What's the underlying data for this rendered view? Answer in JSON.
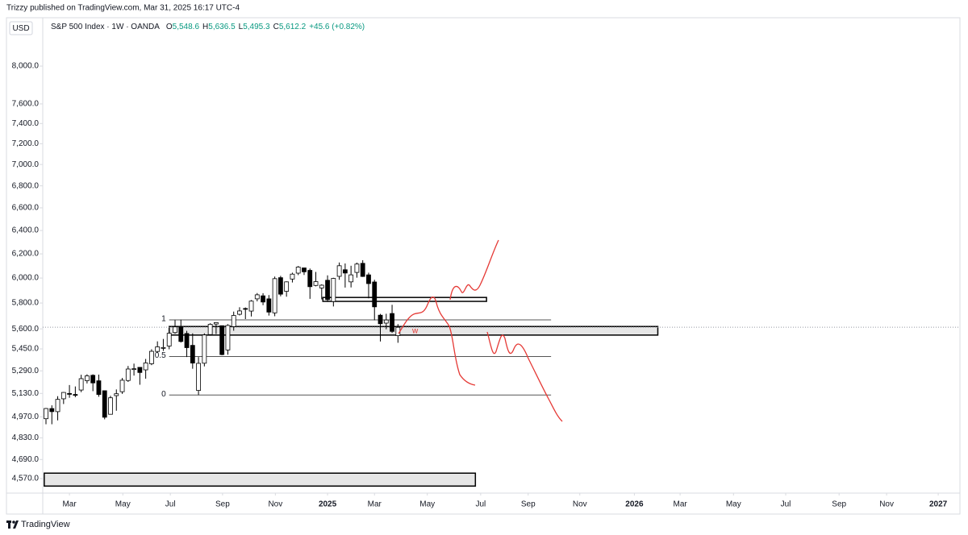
{
  "chart_data": {
    "type": "candlestick",
    "header": "Trizzy published on TradingView.com, Mar 31, 2025 16:17 UTC-4",
    "currency": "USD",
    "legend": {
      "symbol": "S&P 500 Index · 1W · OANDA",
      "fields": [
        {
          "key": "O",
          "value": "5,548.6"
        },
        {
          "key": "H",
          "value": "5,636.5"
        },
        {
          "key": "L",
          "value": "5,495.3"
        },
        {
          "key": "C",
          "value": "5,612.2"
        }
      ],
      "change": "+45.6 (+0.82%)"
    },
    "brand": "TradingView",
    "log_scale": true,
    "up_color": "#ffffff",
    "down_color": "#000000",
    "edge_color": "#000000",
    "open": [
      4957,
      5026,
      5005,
      5093,
      5130,
      5123,
      5154,
      5220,
      5258,
      5219,
      5149,
      4987,
      5115,
      5142,
      5221,
      5305,
      5315,
      5297,
      5341,
      5431,
      5460,
      5471,
      5572,
      5616,
      5565,
      5476,
      5151,
      5345,
      5557,
      5637,
      5624,
      5442,
      5617,
      5712,
      5757,
      5737,
      5833,
      5857,
      5833,
      5723,
      6003,
      5893,
      5992,
      6040,
      6083,
      6063,
      5940,
      5920,
      5982,
      5812,
      6014,
      6068,
      5969,
      6046,
      6121,
      6026,
      5968,
      5705,
      5644,
      5718,
      5548.6
    ],
    "high": [
      5030,
      5048,
      5111,
      5140,
      5189,
      5179,
      5262,
      5265,
      5265,
      5263,
      5151,
      5114,
      5158,
      5239,
      5325,
      5342,
      5315,
      5376,
      5447,
      5506,
      5524,
      5570,
      5667,
      5670,
      5585,
      5566,
      5390,
      5566,
      5643,
      5651,
      5626,
      5636,
      5733,
      5767,
      5765,
      5823,
      5879,
      5878,
      5863,
      6012,
      6018,
      5973,
      6044,
      6099,
      6085,
      6078,
      6050,
      5949,
      6022,
      6002,
      6128,
      6120,
      6101,
      6127,
      6147,
      6044,
      5986,
      5715,
      5716,
      5786,
      5636.5
    ],
    "low": [
      4920,
      4920,
      4946,
      5057,
      5100,
      5104,
      5139,
      5200,
      5146,
      5107,
      4953,
      4985,
      5011,
      5127,
      5211,
      5256,
      5191,
      5234,
      5331,
      5420,
      5435,
      5447,
      5563,
      5497,
      5390,
      5305,
      5119,
      5322,
      5549,
      5561,
      5403,
      5407,
      5586,
      5703,
      5675,
      5695,
      5813,
      5783,
      5702,
      5697,
      5853,
      5850,
      5964,
      6024,
      6025,
      5833,
      5933,
      5829,
      5809,
      5773,
      5986,
      5923,
      5924,
      6003,
      6009,
      5837,
      5666,
      5505,
      5597,
      5570,
      5495.3
    ],
    "close": [
      5026,
      5005,
      5089,
      5137,
      5124,
      5117,
      5234,
      5254,
      5204,
      5123,
      4967,
      5100,
      5128,
      5223,
      5303,
      5305,
      5278,
      5347,
      5432,
      5465,
      5460,
      5567,
      5615,
      5505,
      5459,
      5346,
      5344,
      5554,
      5635,
      5648,
      5408,
      5626,
      5703,
      5738,
      5751,
      5815,
      5865,
      5808,
      5729,
      5995,
      5870,
      5969,
      6032,
      6090,
      6051,
      5930,
      5971,
      5942,
      5827,
      5997,
      6101,
      6041,
      6026,
      6115,
      6013,
      5955,
      5770,
      5639,
      5668,
      5581,
      5612.2
    ],
    "xlim": [
      -0.55,
      155.8
    ],
    "xticks": [
      {
        "value": 4.0,
        "label": "Mar"
      },
      {
        "value": 13.1,
        "label": "May"
      },
      {
        "value": 21.2,
        "label": "Jul"
      },
      {
        "value": 30.1,
        "label": "Sep"
      },
      {
        "value": 39.1,
        "label": "Nov"
      },
      {
        "value": 48.0,
        "label": "2025"
      },
      {
        "value": 56.0,
        "label": "Mar"
      },
      {
        "value": 65.0,
        "label": "May"
      },
      {
        "value": 74.1,
        "label": "Jul"
      },
      {
        "value": 82.2,
        "label": "Sep"
      },
      {
        "value": 91.0,
        "label": "Nov"
      },
      {
        "value": 100.3,
        "label": "2026"
      },
      {
        "value": 108.1,
        "label": "Mar"
      },
      {
        "value": 117.2,
        "label": "May"
      },
      {
        "value": 126.1,
        "label": "Jul"
      },
      {
        "value": 135.2,
        "label": "Sep"
      },
      {
        "value": 143.3,
        "label": "Nov"
      },
      {
        "value": 152.1,
        "label": "2027"
      }
    ],
    "ylim": [
      4481,
      8543
    ],
    "yticks": [
      {
        "value": 8000,
        "label": "8,000.0"
      },
      {
        "value": 7600,
        "label": "7,600.0"
      },
      {
        "value": 7400,
        "label": "7,400.0"
      },
      {
        "value": 7200,
        "label": "7,200.0"
      },
      {
        "value": 7000,
        "label": "7,000.0"
      },
      {
        "value": 6800,
        "label": "6,800.0"
      },
      {
        "value": 6600,
        "label": "6,600.0"
      },
      {
        "value": 6400,
        "label": "6,400.0"
      },
      {
        "value": 6200,
        "label": "6,200.0"
      },
      {
        "value": 6000,
        "label": "6,000.0"
      },
      {
        "value": 5800,
        "label": "5,800.0"
      },
      {
        "value": 5600,
        "label": "5,600.0"
      },
      {
        "value": 5450,
        "label": "5,450.0"
      },
      {
        "value": 5290,
        "label": "5,290.0"
      },
      {
        "value": 5130,
        "label": "5,130.0"
      },
      {
        "value": 4970,
        "label": "4,970.0"
      },
      {
        "value": 4830,
        "label": "4,830.0"
      },
      {
        "value": 4690,
        "label": "4,690.0"
      },
      {
        "value": 4570,
        "label": "4,570.0"
      }
    ],
    "zones": [
      {
        "from": 21.0,
        "to": 104.3,
        "low": 5553,
        "high": 5618,
        "fill": "#e6e6e6"
      },
      {
        "from": 47.2,
        "to": 75.1,
        "low": 5813,
        "high": 5844,
        "fill": "#ffffff"
      },
      {
        "from": -0.3,
        "to": 73.2,
        "low": 4524,
        "high": 4604,
        "fill": "#e6e6e6"
      }
    ],
    "fib": {
      "from": 21.0,
      "to": 86.1,
      "levels": [
        {
          "ratio": 1,
          "price": 5669
        },
        {
          "ratio": 0.5,
          "price": 5394
        },
        {
          "ratio": 0,
          "price": 5119
        }
      ]
    },
    "annotation": "w"
  }
}
